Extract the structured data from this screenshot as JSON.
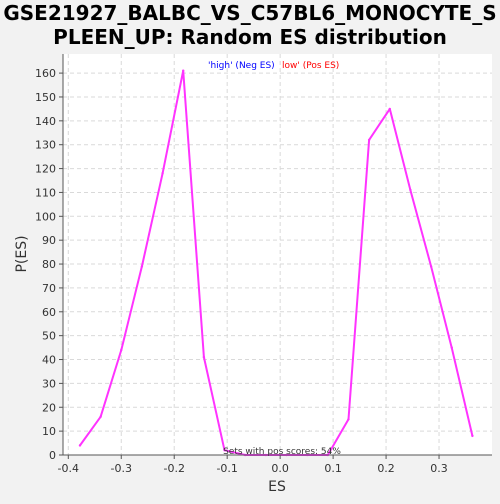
{
  "title_line1": "GSE21927_BALBC_VS_C57BL6_MONOCYTE_S",
  "title_line2": "PLEEN_UP: Random ES distribution",
  "legend": {
    "high_label": "'high' (Neg ES)",
    "low_label": "low' (Pos ES)",
    "high_color": "#0000ff",
    "low_color": "#ff0000"
  },
  "annotation": "Sets with pos scores: 54%",
  "colors": {
    "page_background": "#f2f2f2",
    "plot_background": "#ffffff",
    "line": "#ff33ff",
    "axis": "#555555",
    "grid": "#d9d9d9",
    "text": "#333333"
  },
  "chart_data": {
    "type": "line",
    "title": "GSE21927_BALBC_VS_C57BL6_MONOCYTE_SPLEEN_UP: Random ES distribution",
    "xlabel": "ES",
    "ylabel": "P(ES)",
    "xlim": [
      -0.41,
      0.4
    ],
    "ylim": [
      0,
      168
    ],
    "x_ticks": [
      -0.4,
      -0.3,
      -0.2,
      -0.1,
      0.0,
      0.1,
      0.2,
      0.3
    ],
    "x_tick_labels": [
      "-0.4",
      "-0.3",
      "-0.2",
      "-0.1",
      "0.0",
      "0.1",
      "0.2",
      "0.3"
    ],
    "y_ticks": [
      0,
      10,
      20,
      30,
      40,
      50,
      60,
      70,
      80,
      90,
      100,
      110,
      120,
      130,
      140,
      150,
      160
    ],
    "y_tick_labels": [
      "0",
      "10",
      "20",
      "30",
      "40",
      "50",
      "60",
      "70",
      "80",
      "90",
      "100",
      "110",
      "120",
      "130",
      "140",
      "150",
      "160"
    ],
    "grid": true,
    "legend_position": "top-center",
    "series": [
      {
        "x": [
          -0.378,
          -0.339,
          -0.3,
          -0.261,
          -0.222,
          -0.183,
          -0.144,
          -0.105,
          -0.066,
          -0.027,
          0.012,
          0.051,
          0.09,
          0.129,
          0.168,
          0.207,
          0.246,
          0.285,
          0.324,
          0.363
        ],
        "y": [
          4,
          16,
          44,
          79,
          118,
          161,
          41,
          2,
          0,
          0,
          0,
          0,
          0,
          15,
          132,
          145,
          111,
          79,
          45,
          8
        ]
      }
    ]
  }
}
